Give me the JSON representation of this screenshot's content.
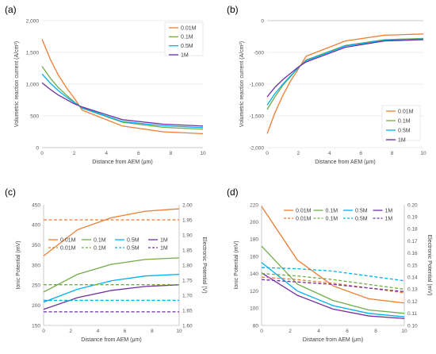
{
  "colors": {
    "0.01M": "#ed7d31",
    "0.1M": "#70ad47",
    "0.5M": "#00b0f0",
    "1M": "#7030a0"
  },
  "chart_data": [
    {
      "panel": "(a)",
      "type": "line",
      "xlabel": "Distance from AEM (μm)",
      "ylabel": "Volumetric reaction current (A/cm³)",
      "xlim": [
        0,
        10
      ],
      "ylim": [
        0,
        2000
      ],
      "xticks": [
        "0",
        "2",
        "4",
        "6",
        "8",
        "10"
      ],
      "yticks": [
        "0",
        "500",
        "1,000",
        "1,500",
        "2,000"
      ],
      "grid": true,
      "legend_position": "top-right",
      "series": [
        {
          "name": "0.01M",
          "x": [
            0,
            0.5,
            1,
            1.5,
            2,
            2.5,
            5,
            7.5,
            10
          ],
          "y": [
            1710,
            1400,
            1150,
            950,
            780,
            590,
            340,
            250,
            220
          ],
          "dash": false
        },
        {
          "name": "0.1M",
          "x": [
            0,
            0.5,
            1,
            1.5,
            2,
            2.5,
            5,
            7.5,
            10
          ],
          "y": [
            1280,
            1100,
            950,
            830,
            720,
            620,
            400,
            320,
            290
          ],
          "dash": false
        },
        {
          "name": "0.5M",
          "x": [
            0,
            0.5,
            1,
            1.5,
            2,
            2.5,
            5,
            7.5,
            10
          ],
          "y": [
            1160,
            1020,
            900,
            800,
            710,
            630,
            410,
            345,
            315
          ],
          "dash": false
        },
        {
          "name": "1M",
          "x": [
            0,
            0.5,
            1,
            1.5,
            2,
            2.5,
            5,
            7.5,
            10
          ],
          "y": [
            1020,
            920,
            830,
            760,
            690,
            640,
            440,
            370,
            340
          ],
          "dash": false
        }
      ]
    },
    {
      "panel": "(b)",
      "type": "line",
      "xlabel": "Distance from AEM (μm)",
      "ylabel": "Volumetric reaction current (A/cm²)",
      "xlim": [
        0,
        10
      ],
      "ylim": [
        -2000,
        0
      ],
      "xticks": [
        "0",
        "2",
        "4",
        "6",
        "8",
        "10"
      ],
      "yticks": [
        "-2,000",
        "-1,500",
        "-1,000",
        "-500",
        "0"
      ],
      "grid": true,
      "legend_position": "bottom-right",
      "series": [
        {
          "name": "0.01M",
          "x": [
            0,
            0.5,
            1,
            1.5,
            2,
            2.5,
            5,
            7.5,
            10
          ],
          "y": [
            -1780,
            -1450,
            -1180,
            -950,
            -760,
            -560,
            -320,
            -230,
            -210
          ],
          "dash": false
        },
        {
          "name": "0.1M",
          "x": [
            0,
            0.5,
            1,
            1.5,
            2,
            2.5,
            5,
            7.5,
            10
          ],
          "y": [
            -1400,
            -1200,
            -1020,
            -880,
            -740,
            -620,
            -390,
            -300,
            -280
          ],
          "dash": false
        },
        {
          "name": "0.5M",
          "x": [
            0,
            0.5,
            1,
            1.5,
            2,
            2.5,
            5,
            7.5,
            10
          ],
          "y": [
            -1330,
            -1150,
            -1000,
            -870,
            -740,
            -630,
            -400,
            -310,
            -290
          ],
          "dash": false
        },
        {
          "name": "1M",
          "x": [
            0,
            0.5,
            1,
            1.5,
            2,
            2.5,
            5,
            7.5,
            10
          ],
          "y": [
            -1200,
            -1050,
            -930,
            -830,
            -730,
            -650,
            -420,
            -320,
            -300
          ],
          "dash": false
        }
      ]
    },
    {
      "panel": "(c)",
      "type": "line",
      "xlabel": "Distance from AEM (μm)",
      "ylabel": "Ionic Potential (mV)",
      "ylabel_right": "Electronic Potential (V)",
      "xlim": [
        0,
        10
      ],
      "ylim": [
        150,
        450
      ],
      "ylim_right": [
        1.6,
        2.0
      ],
      "xticks": [
        "0",
        "2",
        "4",
        "6",
        "8",
        "10"
      ],
      "yticks": [
        "150",
        "200",
        "250",
        "300",
        "350",
        "400",
        "450"
      ],
      "yticks_right": [
        "1.60",
        "1.65",
        "1.70",
        "1.75",
        "1.80",
        "1.85",
        "1.90",
        "1.95",
        "2.00"
      ],
      "grid": false,
      "legend_position": "middle, two rows",
      "series": [
        {
          "name": "0.01M",
          "axis": "left",
          "x": [
            0,
            2.5,
            5,
            7.5,
            10
          ],
          "y": [
            323,
            388,
            418,
            434,
            440
          ],
          "dash": false
        },
        {
          "name": "0.1M",
          "axis": "left",
          "x": [
            0,
            2.5,
            5,
            7.5,
            10
          ],
          "y": [
            233,
            277,
            302,
            314,
            318
          ],
          "dash": false
        },
        {
          "name": "0.5M",
          "axis": "left",
          "x": [
            0,
            2.5,
            5,
            7.5,
            10
          ],
          "y": [
            208,
            240,
            261,
            273,
            277
          ],
          "dash": false
        },
        {
          "name": "1M",
          "axis": "left",
          "x": [
            0,
            2.5,
            5,
            7.5,
            10
          ],
          "y": [
            190,
            219,
            237,
            247,
            251
          ],
          "dash": false
        },
        {
          "name": "0.01M",
          "axis": "right",
          "x": [
            0,
            10
          ],
          "y": [
            1.95,
            1.95
          ],
          "dash": true
        },
        {
          "name": "0.1M",
          "axis": "right",
          "x": [
            0,
            10
          ],
          "y": [
            1.735,
            1.735
          ],
          "dash": true
        },
        {
          "name": "0.5M",
          "axis": "right",
          "x": [
            0,
            10
          ],
          "y": [
            1.683,
            1.683
          ],
          "dash": true
        },
        {
          "name": "1M",
          "axis": "right",
          "x": [
            0,
            10
          ],
          "y": [
            1.645,
            1.645
          ],
          "dash": true
        }
      ]
    },
    {
      "panel": "(d)",
      "type": "line",
      "xlabel": "Distance from AEM (μm)",
      "ylabel": "Ionic Potential (mV)",
      "ylabel_right": "Electronic Potential (mV)",
      "xlim": [
        0,
        10
      ],
      "ylim": [
        80,
        220
      ],
      "ylim_right": [
        0.1,
        0.2
      ],
      "xticks": [
        "0",
        "2",
        "4",
        "6",
        "8",
        "10"
      ],
      "yticks": [
        "80",
        "100",
        "120",
        "140",
        "160",
        "180",
        "200",
        "220"
      ],
      "yticks_right": [
        "0.10",
        "0.11",
        "0.12",
        "0.13",
        "0.14",
        "0.15",
        "0.16",
        "0.17",
        "0.18",
        "0.19",
        "0.20"
      ],
      "grid": false,
      "legend_position": "top-right, two rows",
      "series": [
        {
          "name": "0.01M",
          "axis": "left",
          "x": [
            0,
            2.5,
            5,
            7.5,
            10
          ],
          "y": [
            218,
            156,
            126,
            111,
            106
          ],
          "dash": false
        },
        {
          "name": "0.1M",
          "axis": "left",
          "x": [
            0,
            2.5,
            5,
            7.5,
            10
          ],
          "y": [
            172,
            128,
            109,
            98,
            94
          ],
          "dash": false
        },
        {
          "name": "0.5M",
          "axis": "left",
          "x": [
            0,
            2.5,
            5,
            7.5,
            10
          ],
          "y": [
            153,
            120,
            103,
            94,
            90
          ],
          "dash": false
        },
        {
          "name": "1M",
          "axis": "left",
          "x": [
            0,
            2.5,
            5,
            7.5,
            10
          ],
          "y": [
            141,
            115,
            99,
            91,
            88
          ],
          "dash": false
        },
        {
          "name": "0.01M",
          "axis": "right",
          "x": [
            0,
            2.5,
            5,
            7.5,
            10
          ],
          "y": [
            0.14,
            0.138,
            0.135,
            0.131,
            0.127
          ],
          "dash": true
        },
        {
          "name": "0.1M",
          "axis": "right",
          "x": [
            0,
            2.5,
            5,
            7.5,
            10
          ],
          "y": [
            0.143,
            0.141,
            0.138,
            0.134,
            0.13
          ],
          "dash": true
        },
        {
          "name": "0.5M",
          "axis": "right",
          "x": [
            0,
            2.5,
            5,
            7.5,
            10
          ],
          "y": [
            0.148,
            0.147,
            0.145,
            0.141,
            0.137
          ],
          "dash": true
        },
        {
          "name": "1M",
          "axis": "right",
          "x": [
            0,
            2.5,
            5,
            7.5,
            10
          ],
          "y": [
            0.138,
            0.136,
            0.134,
            0.131,
            0.128
          ],
          "dash": true
        }
      ]
    }
  ]
}
